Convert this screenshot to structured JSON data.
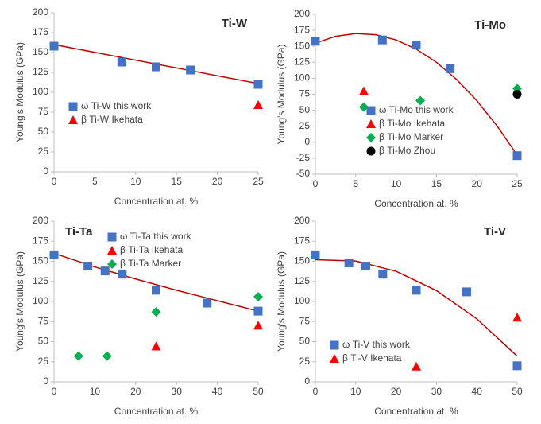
{
  "chart_data": [
    {
      "type": "scatter",
      "title": "Ti-W",
      "title_corner": "upper-right",
      "x_label": "Concentration at. %",
      "y_label": "Young's Modulus (GPa)",
      "xlim": [
        0,
        25
      ],
      "xticks": [
        0,
        5,
        10,
        15,
        20,
        25
      ],
      "ylim": [
        0,
        200
      ],
      "yticks": [
        0,
        25,
        50,
        75,
        100,
        125,
        150,
        175,
        200
      ],
      "legend": "center-left",
      "series": [
        {
          "name": "ω Ti-W this work",
          "color": "#4472c4",
          "marker": "square",
          "x": [
            0,
            8.3,
            12.5,
            16.7,
            25
          ],
          "values": [
            158,
            138,
            132,
            128,
            110
          ]
        },
        {
          "name": "β Ti-W Ikehata",
          "color": "#ff0000",
          "marker": "triangle",
          "x": [
            25
          ],
          "values": [
            84
          ]
        }
      ],
      "trend": {
        "color": "#c00000",
        "x": [
          0,
          25
        ],
        "values": [
          160,
          111
        ]
      }
    },
    {
      "type": "scatter",
      "title": "Ti-Mo",
      "title_corner": "upper-right",
      "x_label": "Concentration at. %",
      "y_label": "Young's Modulus (GPa)",
      "xlim": [
        0,
        25
      ],
      "xticks": [
        0,
        5,
        10,
        15,
        20,
        25
      ],
      "ylim": [
        -50,
        200
      ],
      "yticks": [
        -50,
        -25,
        0,
        25,
        50,
        75,
        100,
        125,
        150,
        175,
        200
      ],
      "legend": "lower-right",
      "series": [
        {
          "name": "ω Ti-Mo this work",
          "color": "#4472c4",
          "marker": "square",
          "x": [
            0,
            8.3,
            12.5,
            16.7,
            25
          ],
          "values": [
            158,
            160,
            152,
            115,
            -21
          ]
        },
        {
          "name": "β Ti-Mo Ikehata",
          "color": "#ff0000",
          "marker": "triangle",
          "x": [
            6
          ],
          "values": [
            80
          ]
        },
        {
          "name": "β Ti-Mo Marker",
          "color": "#00b050",
          "marker": "diamond",
          "x": [
            6,
            13,
            25
          ],
          "values": [
            55,
            65,
            84
          ]
        },
        {
          "name": "β Ti-Mo Zhou",
          "color": "#000000",
          "marker": "circle",
          "x": [
            25
          ],
          "values": [
            75
          ]
        }
      ],
      "trend": {
        "color": "#c00000",
        "x": [
          0,
          2.5,
          5,
          7.5,
          10,
          12.5,
          15,
          17.5,
          20,
          22.5,
          25
        ],
        "values": [
          155,
          165.6,
          170,
          168.1,
          160,
          145.6,
          125,
          98.1,
          65,
          25.6,
          -20
        ]
      }
    },
    {
      "type": "scatter",
      "title": "Ti-Ta",
      "title_corner": "upper-left",
      "x_label": "Concentration at. %",
      "y_label": "Young's Modulus (GPa)",
      "xlim": [
        0,
        50
      ],
      "xticks": [
        0,
        10,
        20,
        30,
        40,
        50
      ],
      "ylim": [
        0,
        200
      ],
      "yticks": [
        0,
        25,
        50,
        75,
        100,
        125,
        150,
        175,
        200
      ],
      "legend": "upper-right",
      "series": [
        {
          "name": "ω Ti-Ta this work",
          "color": "#4472c4",
          "marker": "square",
          "x": [
            0,
            8.3,
            12.5,
            16.7,
            25,
            37.5,
            50
          ],
          "values": [
            158,
            144,
            138,
            134,
            114,
            98,
            88
          ]
        },
        {
          "name": "β Ti-Ta Ikehata",
          "color": "#ff0000",
          "marker": "triangle",
          "x": [
            25,
            50
          ],
          "values": [
            44,
            70
          ]
        },
        {
          "name": "β Ti-Ta Marker",
          "color": "#00b050",
          "marker": "diamond",
          "x": [
            6,
            13,
            25,
            50
          ],
          "values": [
            32,
            32,
            87,
            106
          ]
        }
      ],
      "trend": {
        "color": "#c00000",
        "x": [
          0,
          10,
          20,
          30,
          40,
          50
        ],
        "values": [
          160,
          143,
          128,
          114,
          101,
          88
        ]
      }
    },
    {
      "type": "scatter",
      "title": "Ti-V",
      "title_corner": "upper-right",
      "x_label": "Concentration at. %",
      "y_label": "Young's Modulus (GPa)",
      "xlim": [
        0,
        50
      ],
      "xticks": [
        0,
        10,
        20,
        30,
        40,
        50
      ],
      "ylim": [
        0,
        200
      ],
      "yticks": [
        0,
        25,
        50,
        75,
        100,
        125,
        150,
        175,
        200
      ],
      "legend": "lower-left",
      "series": [
        {
          "name": "ω Ti-V this work",
          "color": "#4472c4",
          "marker": "square",
          "x": [
            0,
            8.3,
            12.5,
            16.7,
            25,
            37.5,
            50
          ],
          "values": [
            158,
            148,
            144,
            134,
            114,
            112,
            20
          ]
        },
        {
          "name": "β Ti-V Ikehata",
          "color": "#ff0000",
          "marker": "triangle",
          "x": [
            25,
            50
          ],
          "values": [
            19,
            80
          ]
        }
      ],
      "trend": {
        "color": "#c00000",
        "x": [
          0,
          10,
          20,
          30,
          40,
          50
        ],
        "values": [
          152,
          150.4,
          137.6,
          113.6,
          78.4,
          32
        ]
      }
    }
  ]
}
